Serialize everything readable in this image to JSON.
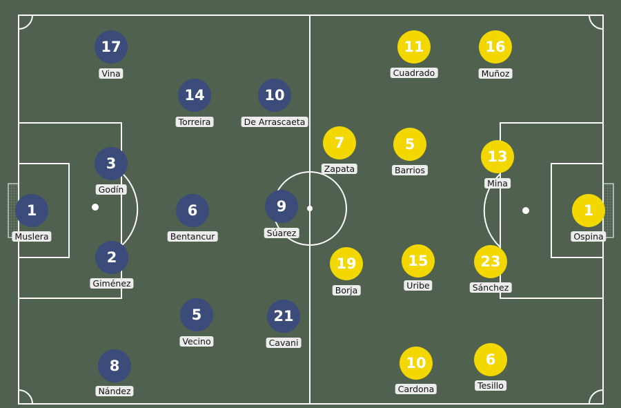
{
  "colors": {
    "pitch": "#506150",
    "lines": "#ffffff",
    "home_team": "#3b4b7a",
    "away_team": "#f2d700"
  },
  "home_players": [
    {
      "number": "17",
      "name": "Vina"
    },
    {
      "number": "14",
      "name": "Torreira"
    },
    {
      "number": "10",
      "name": "De Arrascaeta"
    },
    {
      "number": "3",
      "name": "Godín"
    },
    {
      "number": "1",
      "name": "Muslera"
    },
    {
      "number": "6",
      "name": "Bentancur"
    },
    {
      "number": "9",
      "name": "Súarez"
    },
    {
      "number": "2",
      "name": "Giménez"
    },
    {
      "number": "5",
      "name": "Vecino"
    },
    {
      "number": "21",
      "name": "Cavani"
    },
    {
      "number": "8",
      "name": "Nández"
    }
  ],
  "away_players": [
    {
      "number": "11",
      "name": "Cuadrado"
    },
    {
      "number": "16",
      "name": "Muñoz"
    },
    {
      "number": "7",
      "name": "Zapata"
    },
    {
      "number": "5",
      "name": "Barrios"
    },
    {
      "number": "13",
      "name": "Mina"
    },
    {
      "number": "1",
      "name": "Ospina"
    },
    {
      "number": "19",
      "name": "Borja"
    },
    {
      "number": "15",
      "name": "Uribe"
    },
    {
      "number": "23",
      "name": "Sánchez"
    },
    {
      "number": "10",
      "name": "Cardona"
    },
    {
      "number": "6",
      "name": "Tesillo"
    }
  ]
}
